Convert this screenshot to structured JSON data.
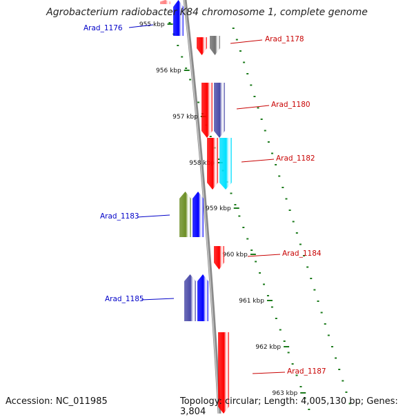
{
  "title": "Agrobacterium radiobacter K84 chromosome 1, complete genome",
  "footer": {
    "accession": "Accession: NC_011985",
    "topology": "Topology: circular; Length: 4,005,130 bp; Genes: 3,804"
  },
  "colors": {
    "backbone": "#8a8a8a",
    "tick": "#1a7a1a",
    "forward_label": "#0000c8",
    "reverse_label": "#c80000"
  },
  "scale_labels": [
    "955 kbp",
    "956 kbp",
    "957 kbp",
    "958 kbp",
    "959 kbp",
    "960 kbp",
    "961 kbp",
    "962 kbp",
    "963 kbp"
  ],
  "genes": [
    {
      "label": "Arad_1176",
      "strand": "forward",
      "color": "#0000ff"
    },
    {
      "label": "",
      "strand": "forward",
      "color": "#ff8080"
    },
    {
      "label": "Arad_1178",
      "strand": "reverse",
      "color": "#ff0000"
    },
    {
      "label": "",
      "strand": "reverse",
      "color": "#707070"
    },
    {
      "label": "Arad_1180",
      "strand": "reverse",
      "color": "#ff0000"
    },
    {
      "label": "",
      "strand": "reverse",
      "color": "#4a4aa8"
    },
    {
      "label": "",
      "strand": "reverse",
      "color": "#ff0000"
    },
    {
      "label": "Arad_1182",
      "strand": "reverse",
      "color": "#00e0ff"
    },
    {
      "label": "Arad_1183",
      "strand": "forward",
      "color": "#6b8e23"
    },
    {
      "label": "",
      "strand": "forward",
      "color": "#0000ff"
    },
    {
      "label": "Arad_1184",
      "strand": "reverse",
      "color": "#ff0000"
    },
    {
      "label": "Arad_1185",
      "strand": "forward",
      "color": "#4a4aa8"
    },
    {
      "label": "",
      "strand": "forward",
      "color": "#0000ff"
    },
    {
      "label": "Arad_1187",
      "strand": "reverse",
      "color": "#ff0000"
    }
  ]
}
